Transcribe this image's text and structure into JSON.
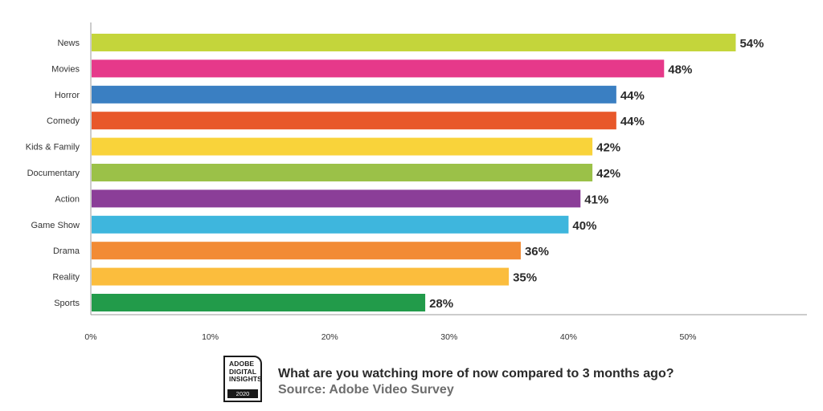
{
  "chart_data": {
    "type": "bar",
    "orientation": "horizontal",
    "categories": [
      "News",
      "Movies",
      "Horror",
      "Comedy",
      "Kids & Family",
      "Documentary",
      "Action",
      "Game Show",
      "Drama",
      "Reality",
      "Sports"
    ],
    "values": [
      54,
      48,
      44,
      44,
      42,
      42,
      41,
      40,
      36,
      35,
      28
    ],
    "value_labels": [
      "54%",
      "48%",
      "44%",
      "44%",
      "42%",
      "42%",
      "41%",
      "40%",
      "36%",
      "35%",
      "28%"
    ],
    "colors": [
      "#c4d53b",
      "#e6398a",
      "#3a7fc2",
      "#e8582a",
      "#f9d33a",
      "#9bc148",
      "#8b3e98",
      "#3eb6dd",
      "#f28b35",
      "#fbbd3d",
      "#229b4a"
    ],
    "xlim": [
      0,
      60
    ],
    "xticks": [
      0,
      10,
      20,
      30,
      40,
      50
    ],
    "xtick_labels": [
      "0%",
      "10%",
      "20%",
      "30%",
      "40%",
      "50%"
    ],
    "grid": false,
    "title": "",
    "xlabel": "",
    "ylabel": ""
  },
  "caption": {
    "question": "What are you watching more of now compared to 3 months ago?",
    "source": "Source: Adobe Video Survey"
  },
  "logo": {
    "lines": [
      "ADOBE",
      "DIGITAL",
      "INSIGHTS"
    ],
    "year": "2020"
  }
}
